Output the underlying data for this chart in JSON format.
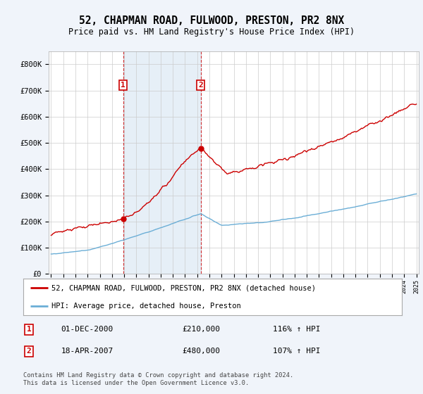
{
  "title": "52, CHAPMAN ROAD, FULWOOD, PRESTON, PR2 8NX",
  "subtitle": "Price paid vs. HM Land Registry's House Price Index (HPI)",
  "ylim": [
    0,
    850000
  ],
  "yticks": [
    0,
    100000,
    200000,
    300000,
    400000,
    500000,
    600000,
    700000,
    800000
  ],
  "ytick_labels": [
    "£0",
    "£100K",
    "£200K",
    "£300K",
    "£400K",
    "£500K",
    "£600K",
    "£700K",
    "£800K"
  ],
  "x_start_year": 1995,
  "x_end_year": 2025,
  "sale1_year": 2000.917,
  "sale1_price": 210000,
  "sale2_year": 2007.3,
  "sale2_price": 480000,
  "hpi_color": "#6baed6",
  "price_color": "#cc0000",
  "legend_label_price": "52, CHAPMAN ROAD, FULWOOD, PRESTON, PR2 8NX (detached house)",
  "legend_label_hpi": "HPI: Average price, detached house, Preston",
  "annotation1_label": "1",
  "annotation1_date": "01-DEC-2000",
  "annotation1_price": "£210,000",
  "annotation1_hpi": "116% ↑ HPI",
  "annotation2_label": "2",
  "annotation2_date": "18-APR-2007",
  "annotation2_price": "£480,000",
  "annotation2_hpi": "107% ↑ HPI",
  "footer": "Contains HM Land Registry data © Crown copyright and database right 2024.\nThis data is licensed under the Open Government Licence v3.0.",
  "background_color": "#f0f4fa",
  "plot_bg_color": "#ffffff",
  "grid_color": "#cccccc",
  "span_color": "#dce9f5"
}
